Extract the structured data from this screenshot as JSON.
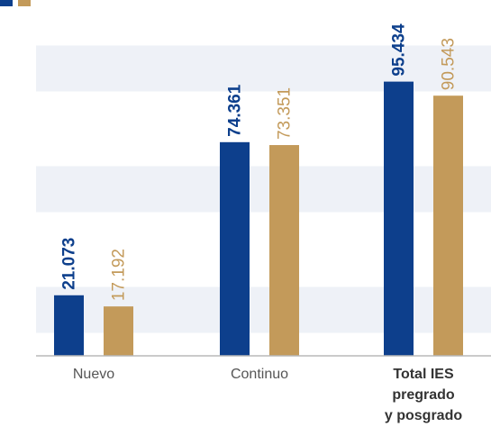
{
  "chart_data": {
    "type": "bar",
    "categories": [
      "Nuevo",
      "Continuo",
      "Total IES pregrado y posgrado"
    ],
    "category_lines": [
      [
        "Nuevo"
      ],
      [
        "Continuo"
      ],
      [
        "Total IES",
        "pregrado",
        "y posgrado"
      ]
    ],
    "series": [
      {
        "name": "",
        "color": "#0d3f8c",
        "values": [
          21073,
          74361,
          95434
        ],
        "labels": [
          "21.073",
          "74.361",
          "95.434"
        ]
      },
      {
        "name": "",
        "color": "#c39a5a",
        "values": [
          17192,
          73351,
          90543
        ],
        "labels": [
          "17.192",
          "73.351",
          "90.543"
        ]
      }
    ],
    "ylim": [
      0,
      116000
    ],
    "grid": "alternating horizontal bands",
    "legend_position": "top-left",
    "band_color": "#eef1f7",
    "axis_color": "#b8b8b8",
    "label_color": "#555555"
  }
}
